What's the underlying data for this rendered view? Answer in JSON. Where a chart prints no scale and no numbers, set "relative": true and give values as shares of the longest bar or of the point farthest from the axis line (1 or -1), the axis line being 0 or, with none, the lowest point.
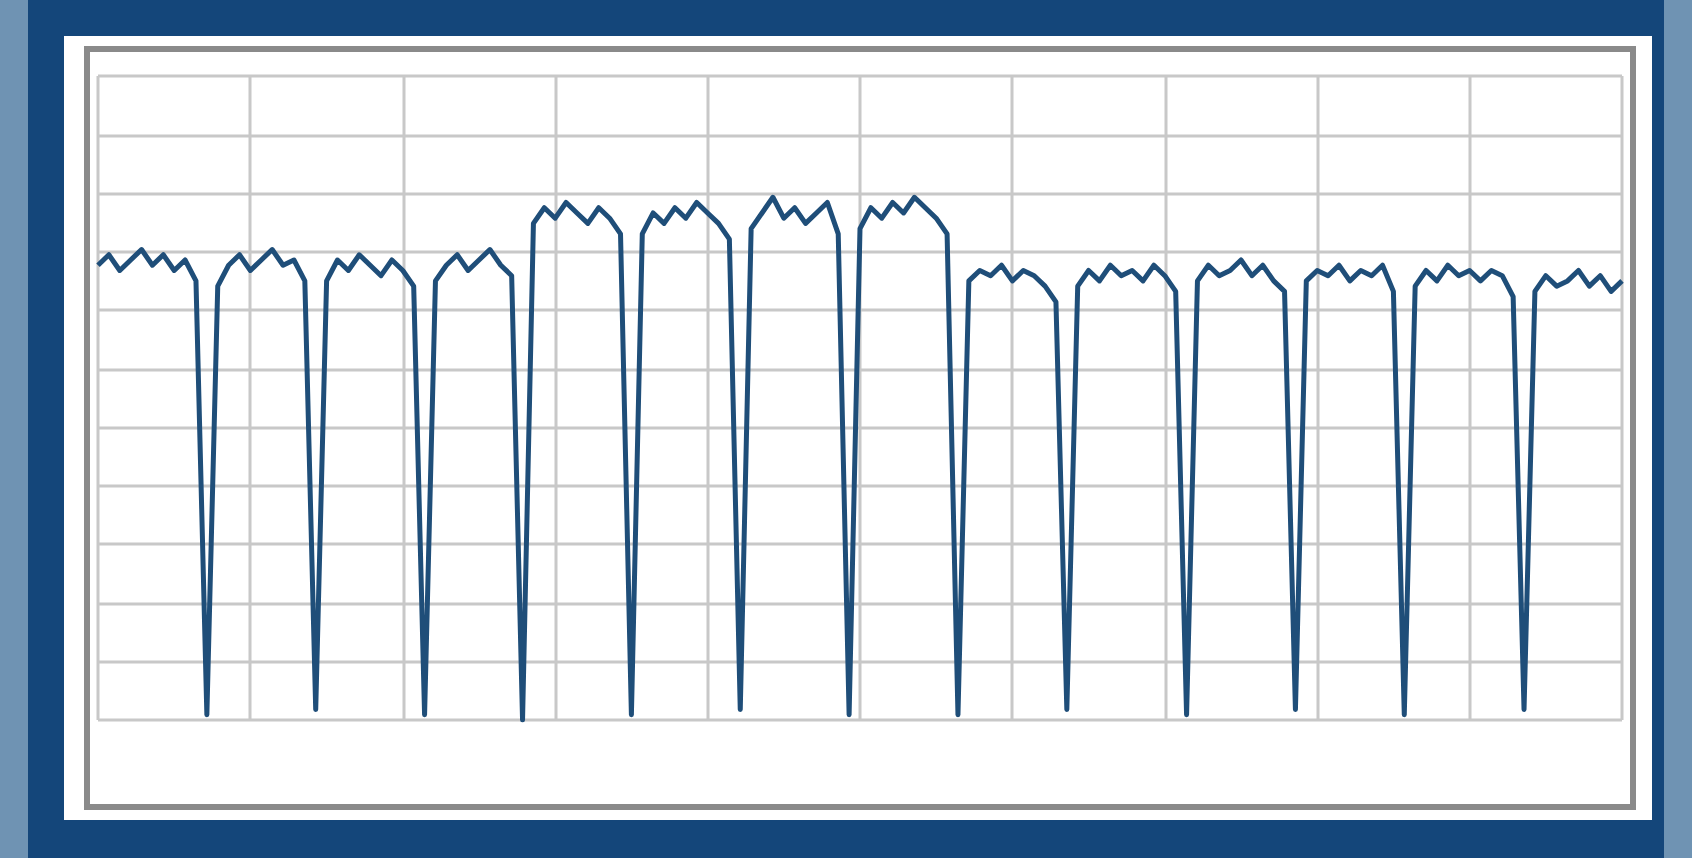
{
  "chart_data": {
    "type": "line",
    "relative": true,
    "grid": true,
    "line_style": "solid",
    "categories": [
      null,
      null,
      null,
      null,
      null,
      null,
      null,
      null,
      null,
      null,
      null,
      null,
      null,
      null,
      null,
      null,
      null,
      null,
      null,
      null,
      null,
      null,
      null,
      null,
      null,
      null,
      null,
      null,
      null,
      null,
      null,
      null,
      null,
      null,
      null,
      null,
      null,
      null,
      null,
      null,
      null,
      null,
      null,
      null,
      null,
      null,
      null,
      null,
      null,
      null,
      null,
      null,
      null,
      null,
      null,
      null,
      null,
      null,
      null,
      null,
      null,
      null,
      null,
      null,
      null,
      null,
      null,
      null,
      null,
      null,
      null,
      null,
      null,
      null,
      null,
      null,
      null,
      null,
      null,
      null,
      null,
      null,
      null,
      null,
      null,
      null,
      null,
      null,
      null,
      null,
      null,
      null,
      null,
      null,
      null,
      null,
      null,
      null,
      null,
      null,
      null,
      null,
      null,
      null,
      null,
      null,
      null,
      null,
      null,
      null,
      null,
      null,
      null,
      null,
      null,
      null,
      null,
      null,
      null,
      null,
      null,
      null,
      null,
      null,
      null,
      null,
      null,
      null,
      null,
      null,
      null,
      null,
      null,
      null,
      null,
      null,
      null,
      null,
      null,
      null,
      null
    ],
    "series": [
      {
        "color": "#1f4e79",
        "values": [
          0.87,
          0.89,
          0.86,
          0.88,
          0.9,
          0.87,
          0.89,
          0.86,
          0.88,
          0.84,
          0.01,
          0.83,
          0.87,
          0.89,
          0.86,
          0.88,
          0.9,
          0.87,
          0.88,
          0.84,
          0.02,
          0.84,
          0.88,
          0.86,
          0.89,
          0.87,
          0.85,
          0.88,
          0.86,
          0.83,
          0.01,
          0.84,
          0.87,
          0.89,
          0.86,
          0.88,
          0.9,
          0.87,
          0.85,
          0,
          0.95,
          0.98,
          0.96,
          0.99,
          0.97,
          0.95,
          0.98,
          0.96,
          0.93,
          0.01,
          0.93,
          0.97,
          0.95,
          0.98,
          0.96,
          0.99,
          0.97,
          0.95,
          0.92,
          0.02,
          0.94,
          0.97,
          1,
          0.96,
          0.98,
          0.95,
          0.97,
          0.99,
          0.93,
          0.01,
          0.94,
          0.98,
          0.96,
          0.99,
          0.97,
          1,
          0.98,
          0.96,
          0.93,
          0.01,
          0.84,
          0.86,
          0.85,
          0.87,
          0.84,
          0.86,
          0.85,
          0.83,
          0.8,
          0.02,
          0.83,
          0.86,
          0.84,
          0.87,
          0.85,
          0.86,
          0.84,
          0.87,
          0.85,
          0.82,
          0.01,
          0.84,
          0.87,
          0.85,
          0.86,
          0.88,
          0.85,
          0.87,
          0.84,
          0.82,
          0.02,
          0.84,
          0.86,
          0.85,
          0.87,
          0.84,
          0.86,
          0.85,
          0.87,
          0.82,
          0.01,
          0.83,
          0.86,
          0.84,
          0.87,
          0.85,
          0.86,
          0.84,
          0.86,
          0.85,
          0.81,
          0.02,
          0.82,
          0.85,
          0.83,
          0.84,
          0.86,
          0.83,
          0.85,
          0.82,
          0.84
        ]
      }
    ]
  }
}
